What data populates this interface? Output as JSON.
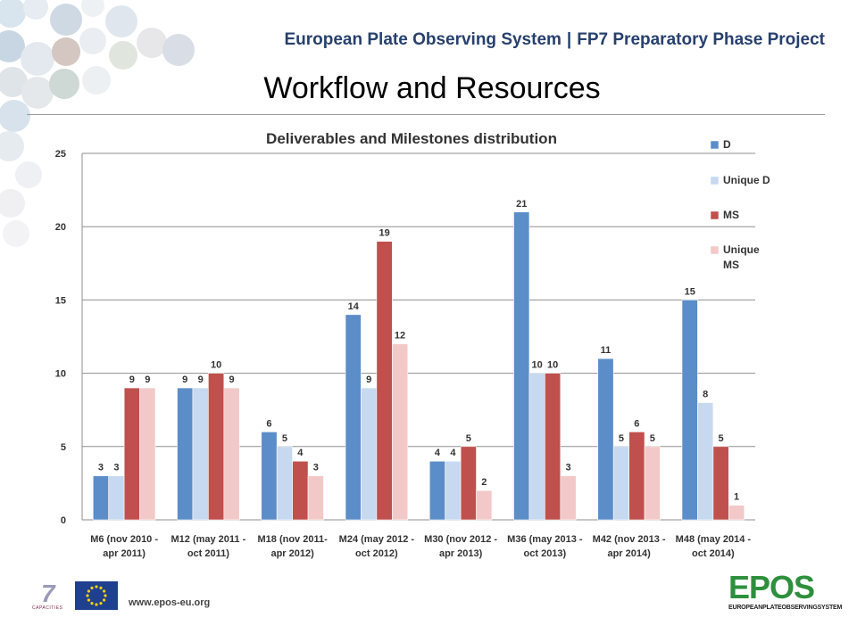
{
  "header": {
    "left_text": "European Plate Observing System",
    "separator": "|",
    "right_text": "FP7 Preparatory Phase Project"
  },
  "slide": {
    "title": "Workflow and Resources"
  },
  "footer": {
    "url": "www.epos-eu.org",
    "fp7_logo_text": "7",
    "fp7_caption": "CAPACITIES",
    "epos_logo_word": "EPOS",
    "epos_logo_subtitle": "EUROPEANPLATEOBSERVINGSYSTEM"
  },
  "colors": {
    "D": "#5b8dc8",
    "Unique D": "#c6d9f1",
    "MS": "#c0504d",
    "Unique MS": "#f2c9c8",
    "title_text": "#27406d",
    "gridline": "#8f8f8f"
  },
  "chart_data": {
    "type": "bar",
    "title": "Deliverables and Milestones distribution",
    "categories": [
      [
        "M6 (nov 2010 -",
        "apr 2011)"
      ],
      [
        "M12 (may 2011 -",
        "oct 2011)"
      ],
      [
        "M18 (nov 2011-",
        "apr 2012)"
      ],
      [
        "M24 (may 2012 -",
        "oct 2012)"
      ],
      [
        "M30 (nov 2012 -",
        "apr 2013)"
      ],
      [
        "M36 (may 2013 -",
        "oct 2013)"
      ],
      [
        "M42 (nov 2013 -",
        "apr 2014)"
      ],
      [
        "M48 (may 2014 -",
        "oct 2014)"
      ]
    ],
    "series": [
      {
        "name": "D",
        "legend_lines": [
          "D"
        ],
        "values": [
          3,
          9,
          6,
          14,
          4,
          21,
          11,
          15
        ]
      },
      {
        "name": "Unique D",
        "legend_lines": [
          "Unique D"
        ],
        "values": [
          3,
          9,
          5,
          9,
          4,
          10,
          5,
          8
        ]
      },
      {
        "name": "MS",
        "legend_lines": [
          "MS"
        ],
        "values": [
          9,
          10,
          4,
          19,
          5,
          10,
          6,
          5
        ]
      },
      {
        "name": "Unique MS",
        "legend_lines": [
          "Unique",
          "MS"
        ],
        "values": [
          9,
          9,
          3,
          12,
          2,
          3,
          5,
          1
        ]
      }
    ],
    "ylim": [
      0,
      25
    ],
    "yticks": [
      0,
      5,
      10,
      15,
      20,
      25
    ],
    "grid": true,
    "legend_position": "right",
    "data_labels": true
  }
}
